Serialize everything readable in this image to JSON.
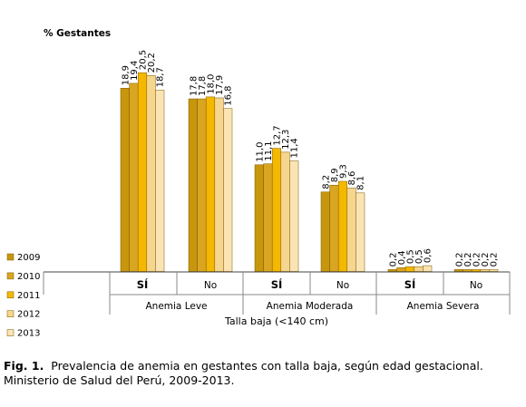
{
  "chart_data": {
    "type": "bar",
    "ylabel": "% Gestantes",
    "xlabel": "Talla baja (<140 cm)",
    "ylim": [
      0,
      25
    ],
    "grid": false,
    "legend_position": "bottom-left",
    "series": [
      {
        "name": "2009",
        "color": "#C8960C"
      },
      {
        "name": "2010",
        "color": "#DAA520"
      },
      {
        "name": "2011",
        "color": "#F5B800"
      },
      {
        "name": "2012",
        "color": "#F6D58E"
      },
      {
        "name": "2013",
        "color": "#FBE4B4"
      }
    ],
    "groups": [
      {
        "label": "Anemia Leve",
        "categories": [
          {
            "label": "SÍ",
            "values": [
              18.9,
              19.4,
              20.5,
              20.2,
              18.7
            ],
            "labels": [
              "18,9",
              "19,4",
              "20,5",
              "20,2",
              "18,7"
            ]
          },
          {
            "label": "No",
            "values": [
              17.8,
              17.8,
              18.0,
              17.9,
              16.8
            ],
            "labels": [
              "17,8",
              "17,8",
              "18,0",
              "17,9",
              "16,8"
            ]
          }
        ]
      },
      {
        "label": "Anemia Moderada",
        "categories": [
          {
            "label": "SÍ",
            "values": [
              11.0,
              11.1,
              12.7,
              12.3,
              11.4
            ],
            "labels": [
              "11,0",
              "11,1",
              "12,7",
              "12,3",
              "11,4"
            ]
          },
          {
            "label": "No",
            "values": [
              8.2,
              8.9,
              9.3,
              8.6,
              8.1
            ],
            "labels": [
              "8,2",
              "8,9",
              "9,3",
              "8,6",
              "8,1"
            ]
          }
        ]
      },
      {
        "label": "Anemia Severa",
        "categories": [
          {
            "label": "SÍ",
            "values": [
              0.2,
              0.4,
              0.5,
              0.5,
              0.6
            ],
            "labels": [
              "0,2",
              "0,4",
              "0,5",
              "0,5",
              "0,6"
            ]
          },
          {
            "label": "No",
            "values": [
              0.2,
              0.2,
              0.2,
              0.2,
              0.2
            ],
            "labels": [
              "0,2",
              "0,2",
              "0,2",
              "0,2",
              "0,2"
            ]
          }
        ]
      }
    ]
  },
  "caption": {
    "prefix": "Fig. 1.",
    "text": "Prevalencia de anemia en gestantes con talla baja, según edad gestacional. Ministerio de Salud del Perú, 2009-2013."
  }
}
